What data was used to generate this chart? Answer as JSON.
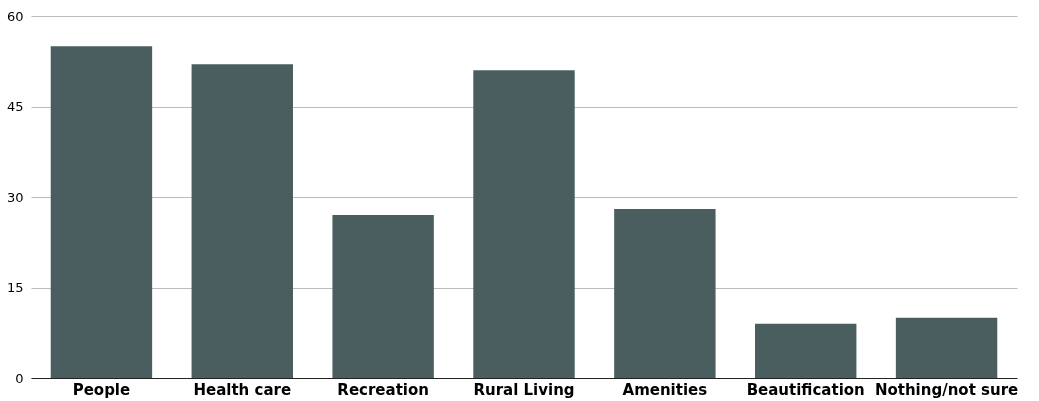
{
  "chart_data": {
    "type": "bar",
    "categories": [
      "People",
      "Health care",
      "Recreation",
      "Rural Living",
      "Amenities",
      "Beautification",
      "Nothing/not sure"
    ],
    "values": [
      55,
      52,
      27,
      51,
      28,
      9,
      10
    ],
    "color": "#4a5e60",
    "ylim": [
      0,
      60
    ],
    "yticks": [
      0,
      15,
      30,
      45,
      60
    ],
    "grid": "y"
  }
}
